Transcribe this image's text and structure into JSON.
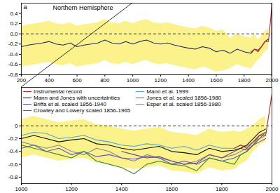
{
  "chart_data": [
    {
      "type": "line",
      "title": "Northern Hemisphere",
      "annotations": [
        "a"
      ],
      "x": [
        200,
        250,
        300,
        350,
        400,
        450,
        500,
        550,
        600,
        650,
        700,
        750,
        800,
        850,
        900,
        950,
        1000,
        1050,
        1100,
        1150,
        1200,
        1250,
        1300,
        1350,
        1400,
        1450,
        1500,
        1550,
        1600,
        1650,
        1700,
        1750,
        1800,
        1850,
        1875,
        1900,
        1925,
        1950,
        1975,
        2000
      ],
      "xlim": [
        200,
        2000
      ],
      "xticks": [
        200,
        400,
        600,
        800,
        1000,
        1200,
        1400,
        1600,
        1800,
        2000
      ],
      "ylim": [
        -0.8,
        0.6
      ],
      "yticks": [
        -0.8,
        -0.6,
        -0.4,
        -0.2,
        {
          "value": 0,
          "label": "0.0"
        },
        0.2,
        0.4
      ],
      "reference_lines": [
        0
      ],
      "series": [
        {
          "color": "#d42020",
          "values": [
            null,
            null,
            null,
            null,
            null,
            null,
            null,
            null,
            null,
            null,
            null,
            null,
            null,
            null,
            null,
            null,
            null,
            null,
            null,
            null,
            null,
            null,
            null,
            null,
            null,
            null,
            null,
            null,
            null,
            null,
            null,
            null,
            null,
            -0.35,
            -0.3,
            -0.35,
            -0.25,
            -0.15,
            -0.15,
            0.55
          ]
        },
        {
          "color": "#1f2a6b",
          "values": [
            -0.25,
            -0.22,
            -0.2,
            -0.18,
            -0.15,
            -0.2,
            -0.22,
            -0.18,
            -0.25,
            -0.22,
            -0.2,
            -0.18,
            -0.12,
            -0.18,
            -0.2,
            -0.15,
            -0.2,
            -0.15,
            -0.12,
            -0.18,
            -0.2,
            -0.18,
            -0.22,
            -0.25,
            -0.28,
            -0.3,
            -0.25,
            -0.28,
            -0.35,
            -0.32,
            -0.38,
            -0.3,
            -0.35,
            -0.38,
            -0.3,
            -0.32,
            -0.25,
            -0.15,
            -0.1,
            null
          ],
          "lower": [
            -0.65,
            -0.62,
            -0.6,
            -0.58,
            -0.55,
            -0.6,
            -0.62,
            -0.58,
            -0.65,
            -0.62,
            -0.6,
            -0.58,
            -0.52,
            -0.58,
            -0.6,
            -0.55,
            -0.6,
            -0.55,
            -0.52,
            -0.58,
            -0.6,
            -0.58,
            -0.62,
            -0.65,
            -0.68,
            -0.7,
            -0.65,
            -0.68,
            -0.75,
            -0.72,
            -0.68,
            -0.6,
            -0.65,
            -0.68,
            -0.6,
            -0.52,
            -0.45,
            -0.35,
            -0.3,
            null
          ],
          "upper": [
            0.15,
            0.18,
            0.2,
            0.22,
            0.25,
            0.2,
            0.18,
            0.22,
            0.15,
            0.18,
            0.2,
            0.22,
            0.28,
            0.22,
            0.2,
            0.25,
            0.2,
            0.25,
            0.28,
            0.22,
            0.2,
            0.22,
            0.18,
            0.15,
            0.12,
            0.1,
            0.15,
            0.12,
            0.05,
            0.08,
            -0.08,
            0.0,
            -0.05,
            -0.08,
            0.0,
            -0.12,
            -0.05,
            0.05,
            0.1,
            null
          ]
        }
      ]
    },
    {
      "type": "line",
      "legend": "top",
      "x": [
        1000,
        1050,
        1100,
        1150,
        1200,
        1250,
        1300,
        1350,
        1400,
        1450,
        1500,
        1550,
        1600,
        1650,
        1700,
        1750,
        1800,
        1850,
        1875,
        1900,
        1925,
        1950,
        1975,
        2000
      ],
      "xlim": [
        1000,
        2000
      ],
      "xticks": [
        1000,
        1200,
        1400,
        1600,
        1800,
        2000
      ],
      "ylim": [
        -0.9,
        0.6
      ],
      "yticks": [
        -0.8,
        -0.6,
        -0.4,
        -0.2,
        0
      ],
      "reference_lines": [
        0
      ],
      "series": [
        {
          "name": "Instrumental record",
          "color": "#d42020",
          "values": [
            null,
            null,
            null,
            null,
            null,
            null,
            null,
            null,
            null,
            null,
            null,
            null,
            null,
            null,
            null,
            null,
            null,
            -0.35,
            -0.3,
            -0.35,
            -0.25,
            -0.15,
            -0.15,
            0.5
          ]
        },
        {
          "name": "Mann and Jones with uncertainties",
          "color": "#111111",
          "values": [
            -0.2,
            -0.15,
            -0.2,
            -0.25,
            -0.22,
            -0.2,
            -0.28,
            -0.3,
            -0.35,
            -0.38,
            -0.35,
            -0.32,
            -0.4,
            -0.42,
            -0.45,
            -0.35,
            -0.4,
            -0.38,
            -0.35,
            -0.3,
            -0.2,
            -0.1,
            -0.05,
            null
          ],
          "lower": [
            -0.5,
            -0.45,
            -0.5,
            -0.55,
            -0.52,
            -0.5,
            -0.58,
            -0.6,
            -0.65,
            -0.68,
            -0.65,
            -0.62,
            -0.7,
            -0.72,
            -0.75,
            -0.65,
            -0.7,
            -0.68,
            -0.6,
            -0.55,
            -0.4,
            -0.3,
            -0.25,
            null
          ],
          "upper": [
            0.1,
            0.15,
            0.1,
            0.05,
            0.08,
            0.1,
            0.02,
            0.0,
            -0.05,
            -0.08,
            -0.05,
            -0.02,
            -0.1,
            -0.12,
            -0.15,
            -0.05,
            -0.1,
            -0.08,
            -0.1,
            -0.05,
            0.0,
            0.1,
            0.15,
            null
          ]
        },
        {
          "name": "Briffa et al. scaled 1856-1940",
          "color": "#6b4a8a",
          "values": [
            null,
            null,
            null,
            null,
            null,
            null,
            null,
            null,
            -0.4,
            -0.45,
            -0.5,
            -0.48,
            -0.55,
            -0.6,
            -0.58,
            -0.45,
            -0.5,
            -0.4,
            -0.35,
            -0.38,
            -0.3,
            -0.25,
            -0.2,
            null
          ]
        },
        {
          "name": "Crowley and Lowery scaled 1856-1965",
          "color": "#3f8a2a",
          "values": [
            -0.3,
            -0.35,
            -0.4,
            -0.45,
            -0.5,
            -0.4,
            -0.55,
            -0.6,
            -0.65,
            -0.75,
            -0.6,
            -0.55,
            -0.6,
            -0.62,
            -0.7,
            -0.5,
            -0.55,
            -0.6,
            -0.45,
            -0.4,
            -0.3,
            -0.15,
            -0.1,
            null
          ]
        },
        {
          "name": "Mann et al. 1999",
          "color": "#4aa8e0",
          "values": [
            -0.15,
            -0.1,
            -0.12,
            -0.2,
            -0.18,
            -0.15,
            -0.22,
            -0.25,
            -0.3,
            -0.32,
            -0.28,
            -0.3,
            -0.35,
            -0.32,
            -0.38,
            -0.3,
            -0.35,
            -0.35,
            -0.3,
            -0.32,
            -0.25,
            -0.15,
            -0.1,
            null
          ]
        },
        {
          "name": "Jones et al. scaled 1856-1980",
          "color": "#5a5ad0",
          "values": [
            -0.35,
            -0.3,
            -0.4,
            -0.35,
            -0.45,
            -0.4,
            -0.48,
            -0.45,
            -0.5,
            -0.52,
            -0.48,
            -0.5,
            -0.6,
            -0.55,
            -0.6,
            -0.5,
            -0.55,
            -0.5,
            -0.45,
            -0.4,
            -0.3,
            -0.2,
            -0.1,
            null
          ]
        },
        {
          "name": "Esper et al. scaled 1856-1980",
          "color": "#8a8a8a",
          "values": [
            -0.25,
            -0.3,
            -0.35,
            -0.3,
            -0.4,
            -0.45,
            -0.35,
            -0.4,
            -0.5,
            -0.55,
            -0.45,
            -0.5,
            -0.55,
            -0.6,
            -0.55,
            -0.45,
            -0.5,
            -0.45,
            -0.4,
            -0.35,
            -0.25,
            -0.2,
            -0.15,
            null
          ]
        }
      ]
    }
  ]
}
